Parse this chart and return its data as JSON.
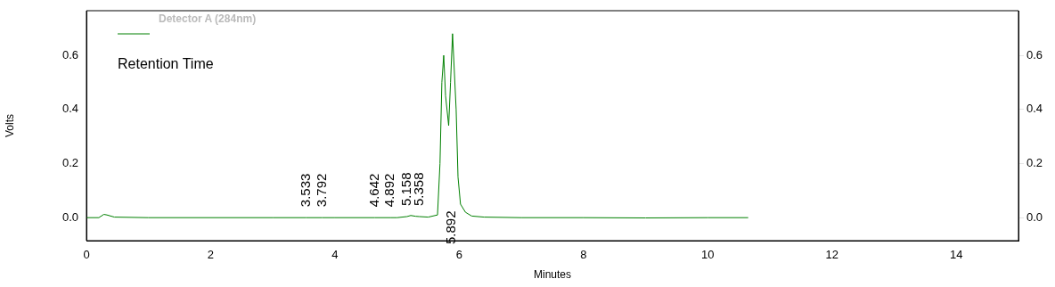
{
  "chart_data": {
    "type": "line",
    "xlabel": "Minutes",
    "ylabel": "Volts",
    "legend": "top left",
    "legend_title": "Retention Time",
    "xlim": [
      0,
      15
    ],
    "xticks": [
      0,
      2,
      4,
      6,
      8,
      10,
      12,
      14
    ],
    "ylim": [
      -0.085,
      0.765
    ],
    "yticks": [
      {
        "value": 0,
        "label": "0.0"
      },
      {
        "value": 0.2,
        "label": "0.2"
      },
      {
        "value": 0.4,
        "label": "0.4"
      },
      {
        "value": 0.6,
        "label": "0.6"
      }
    ],
    "y2lim": [
      -0.085,
      0.765
    ],
    "y2ticks": [
      {
        "value": 0,
        "label": "0.0"
      },
      {
        "value": 0.2,
        "label": "0.2"
      },
      {
        "value": 0.4,
        "label": "0.4"
      },
      {
        "value": 0.6,
        "label": "0.6"
      }
    ],
    "grid": false,
    "marker": "none",
    "line_style": "solid",
    "series": [
      {
        "name": "Detector A (284nm)",
        "color": "#008000",
        "x": [
          0,
          0.2,
          0.28,
          0.33,
          0.45,
          1,
          3,
          3.533,
          3.792,
          4,
          4.642,
          4.892,
          5,
          5.158,
          5.22,
          5.3,
          5.358,
          5.5,
          5.65,
          5.69,
          5.72,
          5.75,
          5.78,
          5.83,
          5.86,
          5.892,
          5.95,
          5.98,
          6.02,
          6.1,
          6.2,
          6.4,
          7,
          8,
          9,
          10,
          10.65
        ],
        "values": [
          0,
          0,
          0.012,
          0.01,
          0.002,
          0,
          0,
          0,
          0,
          0,
          0,
          0,
          0,
          0.004,
          0.008,
          0.005,
          0.004,
          0.002,
          0.01,
          0.2,
          0.5,
          0.6,
          0.45,
          0.34,
          0.5,
          0.68,
          0.4,
          0.15,
          0.05,
          0.02,
          0.006,
          0.002,
          0,
          0,
          -0.001,
          0,
          0
        ]
      }
    ],
    "annotations": [
      {
        "text": "3.533",
        "x": 3.533,
        "y": 0
      },
      {
        "text": "3.792",
        "x": 3.792,
        "y": 0
      },
      {
        "text": "4.642",
        "x": 4.642,
        "y": 0
      },
      {
        "text": "4.892",
        "x": 4.892,
        "y": 0
      },
      {
        "text": "5.158",
        "x": 5.158,
        "y": 0.004
      },
      {
        "text": "5.358",
        "x": 5.358,
        "y": 0.004
      },
      "5.892"
    ]
  }
}
